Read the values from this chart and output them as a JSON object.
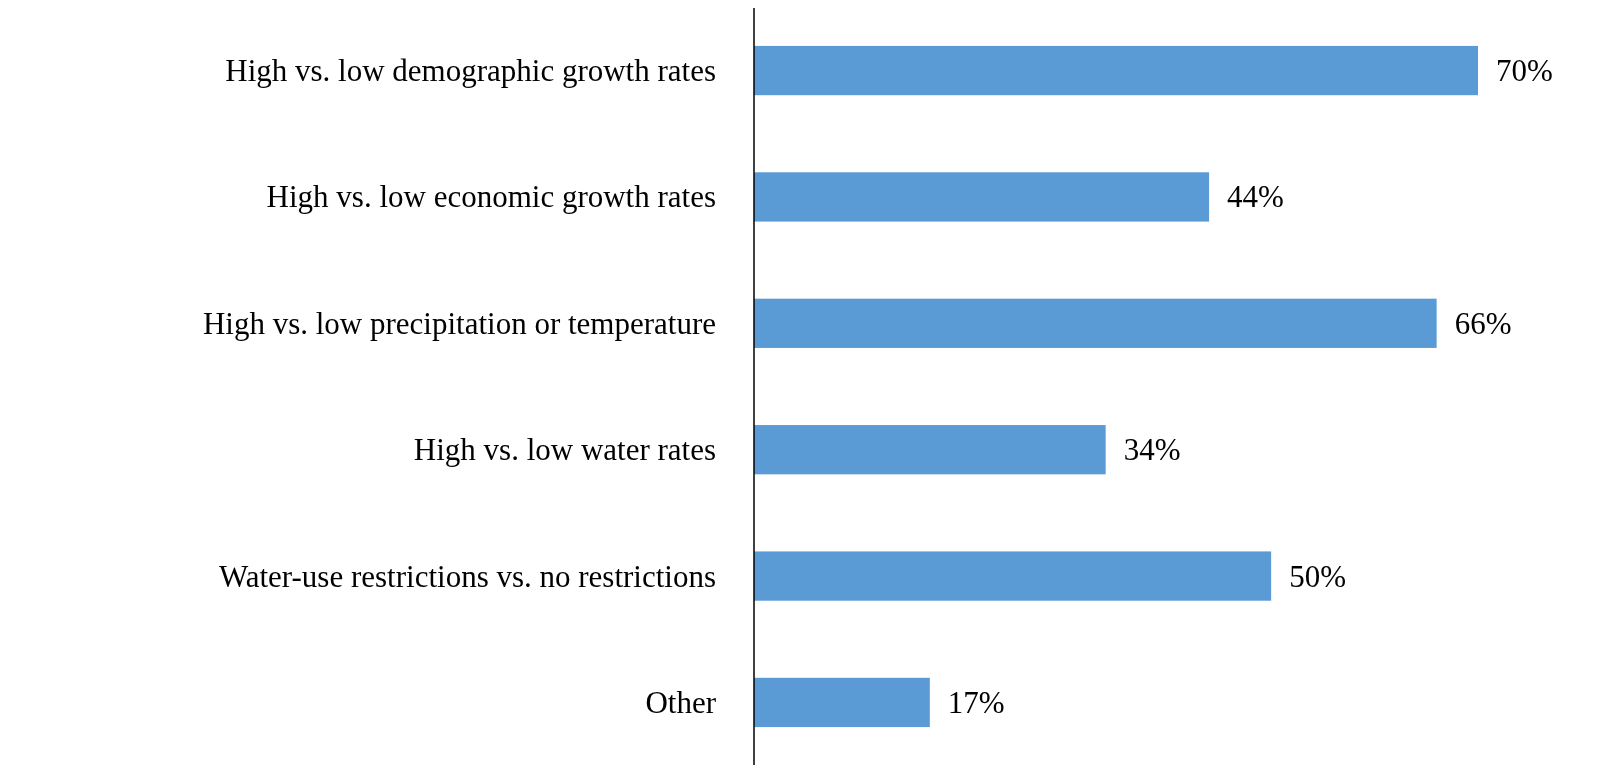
{
  "chart_data": {
    "type": "bar",
    "orientation": "horizontal",
    "categories": [
      "High vs. low demographic growth rates",
      "High vs. low economic growth rates",
      "High vs. low precipitation or temperature",
      "High vs. low water rates",
      "Water-use restrictions vs. no restrictions",
      "Other"
    ],
    "values": [
      70,
      44,
      66,
      34,
      50,
      17
    ],
    "value_labels": [
      "70%",
      "44%",
      "66%",
      "34%",
      "50%",
      "17%"
    ],
    "color": "#5b9bd5"
  }
}
